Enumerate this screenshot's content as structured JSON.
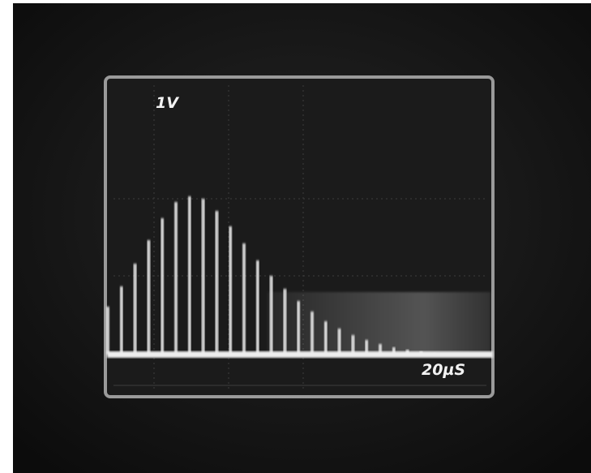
{
  "screen": {
    "volts_label": "1V",
    "time_label": "20µS"
  }
}
